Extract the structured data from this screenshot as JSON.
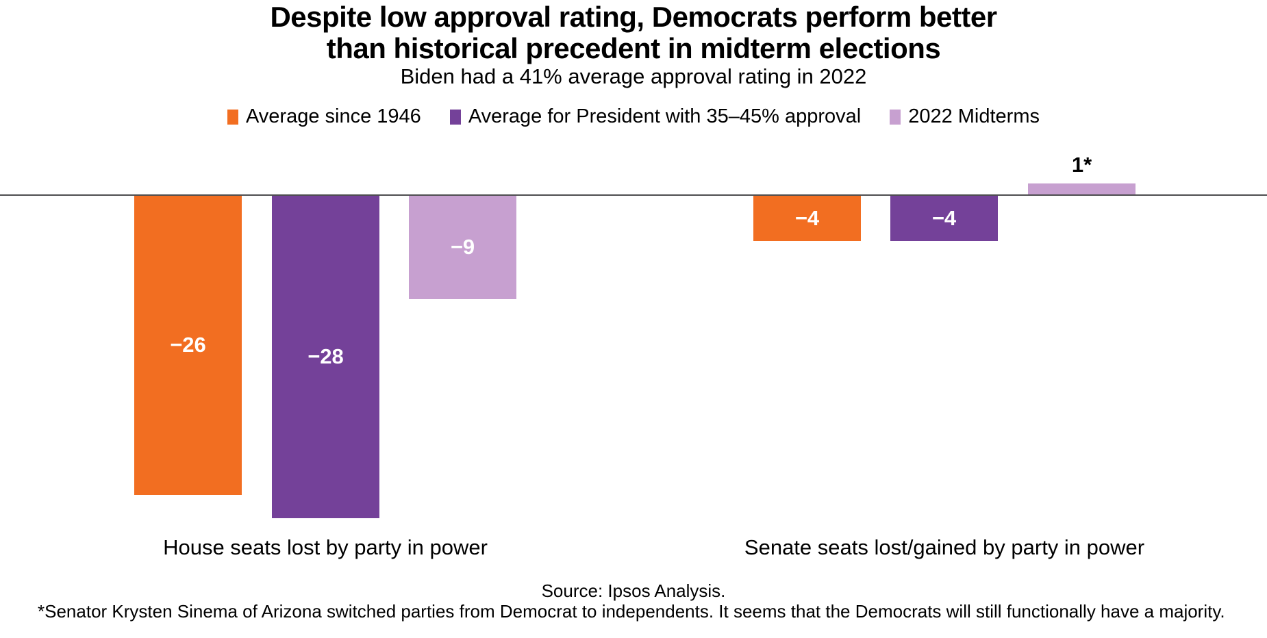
{
  "title": "Despite low approval rating, Democrats perform better\nthan historical precedent in midterm elections",
  "subtitle": "Biden had a 41% average approval rating in 2022",
  "legend": [
    {
      "label": "Average since 1946",
      "color": "#F26E21"
    },
    {
      "label": "Average for President with 35–45% approval",
      "color": "#744199"
    },
    {
      "label": "2022 Midterms",
      "color": "#C7A0D0"
    }
  ],
  "chart_data": {
    "type": "bar",
    "categories": [
      "House seats lost by party in power",
      "Senate seats lost/gained by party in power"
    ],
    "series": [
      {
        "name": "Average since 1946",
        "color": "#F26E21",
        "values": [
          -26,
          -4
        ],
        "labels": [
          "−26",
          "−4"
        ]
      },
      {
        "name": "Average for President with 35–45% approval",
        "color": "#744199",
        "values": [
          -28,
          -4
        ],
        "labels": [
          "−28",
          "−4"
        ]
      },
      {
        "name": "2022 Midterms",
        "color": "#C7A0D0",
        "values": [
          -9,
          1
        ],
        "labels": [
          "−9",
          "1*"
        ]
      }
    ],
    "baseline": 0,
    "ylim": [
      -30,
      3
    ],
    "grid": false,
    "legend_position": "top",
    "value_label_color_negative": "#FFFFFF",
    "value_label_color_positive": "#000000",
    "axis_line_color": "#4D4D4F"
  },
  "footer": {
    "source": "Source: Ipsos Analysis.",
    "footnote": "*Senator Krysten Sinema of Arizona switched parties from Democrat to independents. It seems that the Democrats will still functionally have a majority."
  }
}
